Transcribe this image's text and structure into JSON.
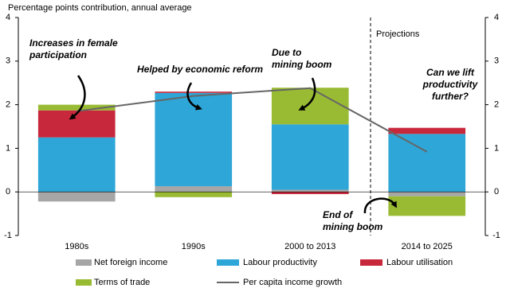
{
  "chart_data": {
    "type": "stacked_bar_line",
    "subtitle": "Percentage points contribution, annual average",
    "categories": [
      "1980s",
      "1990s",
      "2000 to 2013",
      "2014 to 2025"
    ],
    "series": [
      {
        "name": "Net foreign income",
        "color": "#a6a6a6",
        "values": [
          -0.22,
          0.13,
          0.05,
          -0.1
        ]
      },
      {
        "name": "Labour productivity",
        "color": "#2ea6d7",
        "values": [
          1.25,
          2.14,
          1.5,
          1.33
        ]
      },
      {
        "name": "Labour utilisation",
        "color": "#c8283c",
        "values": [
          0.62,
          0.03,
          -0.05,
          0.14
        ]
      },
      {
        "name": "Terms of trade",
        "color": "#99bb33",
        "values": [
          0.13,
          -0.12,
          0.84,
          -0.45
        ]
      },
      {
        "name": "Per capita income growth",
        "color": "#666666",
        "type": "line",
        "values": [
          1.85,
          2.2,
          2.38,
          0.92
        ]
      }
    ],
    "ylim": [
      -1,
      4
    ],
    "yticks": [
      -1,
      0,
      1,
      2,
      3,
      4
    ],
    "projection_label": "Projections",
    "annotations": [
      {
        "lines": [
          "Increases in female",
          "participation"
        ]
      },
      {
        "lines": [
          "Helped by economic reform"
        ]
      },
      {
        "lines": [
          "Due to",
          "mining boom"
        ]
      },
      {
        "lines": [
          "End of",
          "mining boom"
        ]
      },
      {
        "lines": [
          "Can we lift",
          "productivity",
          "further?"
        ]
      }
    ]
  }
}
